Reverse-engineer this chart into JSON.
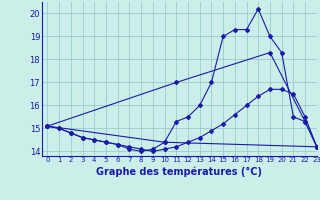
{
  "title": "Graphe des températures (°C)",
  "bg_color": "#cceee8",
  "grid_color": "#99cccc",
  "line_color": "#1a1aaa",
  "xlim": [
    -0.5,
    23
  ],
  "ylim": [
    13.8,
    20.5
  ],
  "yticks": [
    14,
    15,
    16,
    17,
    18,
    19,
    20
  ],
  "xticks": [
    0,
    1,
    2,
    3,
    4,
    5,
    6,
    7,
    8,
    9,
    10,
    11,
    12,
    13,
    14,
    15,
    16,
    17,
    18,
    19,
    20,
    21,
    22,
    23
  ],
  "series1_x": [
    0,
    1,
    2,
    3,
    4,
    5,
    6,
    7,
    8,
    9,
    10,
    11,
    12,
    13,
    14,
    15,
    16,
    17,
    18,
    19,
    20,
    21,
    22,
    23
  ],
  "series1_y": [
    15.1,
    15.0,
    14.8,
    14.6,
    14.5,
    14.4,
    14.3,
    14.1,
    14.0,
    14.1,
    14.4,
    15.3,
    15.5,
    16.0,
    17.0,
    19.0,
    19.3,
    19.3,
    20.2,
    19.0,
    18.3,
    15.5,
    15.3,
    14.2
  ],
  "series2_x": [
    0,
    1,
    2,
    3,
    4,
    5,
    6,
    7,
    8,
    9,
    10,
    11,
    12,
    13,
    14,
    15,
    16,
    17,
    18,
    19,
    20,
    21,
    22,
    23
  ],
  "series2_y": [
    15.1,
    15.0,
    14.8,
    14.6,
    14.5,
    14.4,
    14.3,
    14.2,
    14.1,
    14.0,
    14.1,
    14.2,
    14.4,
    14.6,
    14.9,
    15.2,
    15.6,
    16.0,
    16.4,
    16.7,
    16.7,
    16.5,
    15.5,
    14.2
  ],
  "series3_x": [
    0,
    10,
    23
  ],
  "series3_y": [
    15.1,
    14.4,
    14.2
  ],
  "series4_x": [
    0,
    11,
    19,
    22,
    23
  ],
  "series4_y": [
    15.1,
    17.0,
    18.3,
    15.3,
    14.2
  ]
}
